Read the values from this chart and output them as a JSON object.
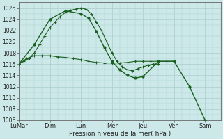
{
  "bg_color": "#cce8e8",
  "grid_color": "#aacece",
  "line_color": "#1a6020",
  "xlabel": "Pression niveau de la mer( hPa )",
  "ylim": [
    1006,
    1027
  ],
  "yticks": [
    1006,
    1008,
    1010,
    1012,
    1014,
    1016,
    1018,
    1020,
    1022,
    1024,
    1026
  ],
  "xtick_labels": [
    "LuMar",
    "Dim",
    "Lun",
    "Mer",
    "Jeu",
    "Ven",
    "Sam"
  ],
  "xtick_pos": [
    0,
    2,
    4,
    6,
    8,
    10,
    12
  ],
  "xlim": [
    0,
    13
  ],
  "series1": {
    "x": [
      0,
      0.33,
      0.66,
      1.0,
      1.33,
      1.66,
      2.0,
      2.33,
      2.66,
      3.0,
      3.33,
      3.66,
      4.0,
      4.33,
      4.66,
      5.0,
      5.33,
      5.66,
      6.0,
      6.33,
      6.66,
      7.0,
      7.33,
      7.66,
      8.0,
      8.33,
      8.66,
      9.0
    ],
    "y": [
      1016.0,
      1016.5,
      1017.0,
      1018.0,
      1019.5,
      1021.0,
      1022.5,
      1023.5,
      1024.5,
      1025.2,
      1025.6,
      1025.8,
      1026.0,
      1025.8,
      1025.0,
      1023.5,
      1022.0,
      1020.0,
      1018.0,
      1016.5,
      1015.5,
      1015.0,
      1014.8,
      1015.2,
      1015.5,
      1015.8,
      1016.0,
      1016.0
    ]
  },
  "series2": {
    "x": [
      0,
      0.5,
      1.0,
      1.5,
      2.0,
      2.5,
      3.0,
      3.5,
      4.0,
      4.5,
      5.0,
      5.5,
      6.0,
      6.5,
      7.0,
      7.5,
      8.0,
      8.5,
      9.0,
      9.5,
      10.0
    ],
    "y": [
      1016.0,
      1017.0,
      1017.5,
      1017.5,
      1017.5,
      1017.3,
      1017.2,
      1017.0,
      1016.8,
      1016.5,
      1016.3,
      1016.2,
      1016.2,
      1016.2,
      1016.3,
      1016.5,
      1016.5,
      1016.5,
      1016.5,
      1016.5,
      1016.5
    ]
  },
  "series3": {
    "x": [
      0,
      1.0,
      2.0,
      3.0,
      4.0,
      4.5,
      5.0,
      5.5,
      6.0,
      6.5,
      7.0,
      7.5,
      8.0,
      9.0,
      10.0,
      11.0,
      12.0
    ],
    "y": [
      1016.0,
      1019.5,
      1024.0,
      1025.5,
      1025.0,
      1024.2,
      1021.8,
      1019.0,
      1016.5,
      1015.0,
      1014.0,
      1013.5,
      1013.8,
      1016.5,
      1016.5,
      1012.0,
      1006.0
    ]
  }
}
